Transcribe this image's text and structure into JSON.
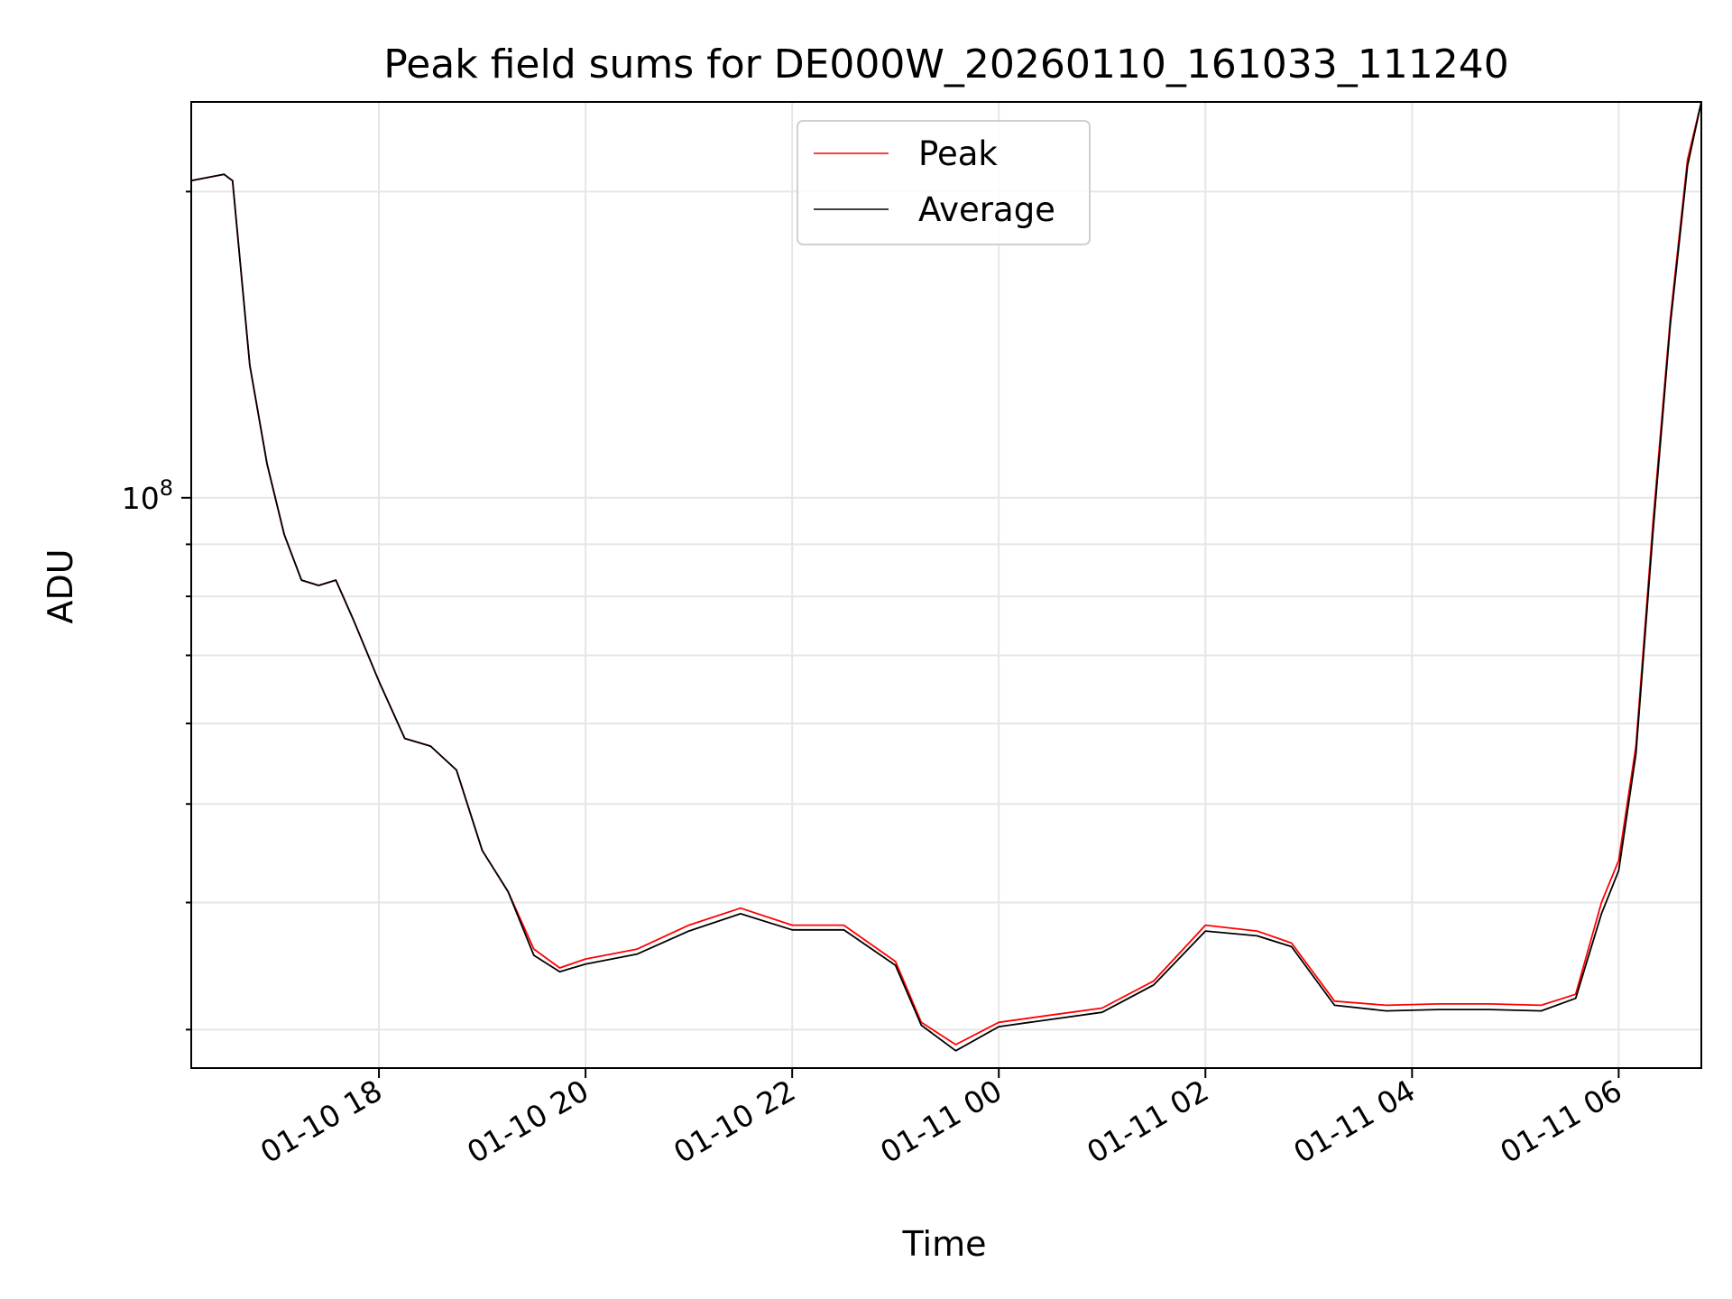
{
  "chart_data": {
    "type": "line",
    "title": "Peak field sums for DE000W_20260110_161033_111240",
    "xlabel": "Time",
    "ylabel": "ADU",
    "x_type": "datetime",
    "y_scale": "log",
    "xlim": [
      "2026-01-10 16:11",
      "2026-01-11 06:48"
    ],
    "ylim": [
      27500000,
      245000000
    ],
    "y_major_ticks": [
      {
        "value": 100000000,
        "base": "10",
        "exp": "8"
      }
    ],
    "x_ticks": [
      {
        "value": "2026-01-10 18:00",
        "label": "01-10 18"
      },
      {
        "value": "2026-01-10 20:00",
        "label": "01-10 20"
      },
      {
        "value": "2026-01-10 22:00",
        "label": "01-10 22"
      },
      {
        "value": "2026-01-11 00:00",
        "label": "01-11 00"
      },
      {
        "value": "2026-01-11 02:00",
        "label": "01-11 02"
      },
      {
        "value": "2026-01-11 04:00",
        "label": "01-11 04"
      },
      {
        "value": "2026-01-11 06:00",
        "label": "01-11 06"
      }
    ],
    "grid": true,
    "legend_position": "upper center",
    "series": [
      {
        "name": "Peak",
        "color": "#ff0000",
        "x": [
          "2026-01-10 16:11",
          "2026-01-10 16:30",
          "2026-01-10 16:35",
          "2026-01-10 16:45",
          "2026-01-10 16:55",
          "2026-01-10 17:05",
          "2026-01-10 17:15",
          "2026-01-10 17:25",
          "2026-01-10 17:35",
          "2026-01-10 17:45",
          "2026-01-10 18:00",
          "2026-01-10 18:15",
          "2026-01-10 18:30",
          "2026-01-10 18:45",
          "2026-01-10 19:00",
          "2026-01-10 19:15",
          "2026-01-10 19:30",
          "2026-01-10 19:45",
          "2026-01-10 20:00",
          "2026-01-10 20:30",
          "2026-01-10 21:00",
          "2026-01-10 21:30",
          "2026-01-10 22:00",
          "2026-01-10 22:30",
          "2026-01-10 23:00",
          "2026-01-10 23:15",
          "2026-01-10 23:35",
          "2026-01-11 00:00",
          "2026-01-11 00:30",
          "2026-01-11 01:00",
          "2026-01-11 01:30",
          "2026-01-11 02:00",
          "2026-01-11 02:30",
          "2026-01-11 02:50",
          "2026-01-11 03:15",
          "2026-01-11 03:45",
          "2026-01-11 04:15",
          "2026-01-11 04:45",
          "2026-01-11 05:15",
          "2026-01-11 05:35",
          "2026-01-11 05:50",
          "2026-01-11 06:00",
          "2026-01-11 06:10",
          "2026-01-11 06:20",
          "2026-01-11 06:30",
          "2026-01-11 06:40",
          "2026-01-11 06:48"
        ],
        "y": [
          205000000,
          208000000,
          205000000,
          135000000,
          108000000,
          92000000,
          83000000,
          82000000,
          83000000,
          76000000,
          66000000,
          58000000,
          57000000,
          54000000,
          45000000,
          41000000,
          36000000,
          34500000,
          35200000,
          36000000,
          38000000,
          39500000,
          38000000,
          38000000,
          35000000,
          30500000,
          29000000,
          30500000,
          31000000,
          31500000,
          33500000,
          38000000,
          37500000,
          36500000,
          32000000,
          31700000,
          31800000,
          31800000,
          31700000,
          32500000,
          40000000,
          44000000,
          57000000,
          95000000,
          150000000,
          215000000,
          245000000
        ]
      },
      {
        "name": "Average",
        "color": "#000000",
        "x": [
          "2026-01-10 16:11",
          "2026-01-10 16:30",
          "2026-01-10 16:35",
          "2026-01-10 16:45",
          "2026-01-10 16:55",
          "2026-01-10 17:05",
          "2026-01-10 17:15",
          "2026-01-10 17:25",
          "2026-01-10 17:35",
          "2026-01-10 17:45",
          "2026-01-10 18:00",
          "2026-01-10 18:15",
          "2026-01-10 18:30",
          "2026-01-10 18:45",
          "2026-01-10 19:00",
          "2026-01-10 19:15",
          "2026-01-10 19:30",
          "2026-01-10 19:45",
          "2026-01-10 20:00",
          "2026-01-10 20:30",
          "2026-01-10 21:00",
          "2026-01-10 21:30",
          "2026-01-10 22:00",
          "2026-01-10 22:30",
          "2026-01-10 23:00",
          "2026-01-10 23:15",
          "2026-01-10 23:35",
          "2026-01-11 00:00",
          "2026-01-11 00:30",
          "2026-01-11 01:00",
          "2026-01-11 01:30",
          "2026-01-11 02:00",
          "2026-01-11 02:30",
          "2026-01-11 02:50",
          "2026-01-11 03:15",
          "2026-01-11 03:45",
          "2026-01-11 04:15",
          "2026-01-11 04:45",
          "2026-01-11 05:15",
          "2026-01-11 05:35",
          "2026-01-11 05:50",
          "2026-01-11 06:00",
          "2026-01-11 06:10",
          "2026-01-11 06:20",
          "2026-01-11 06:30",
          "2026-01-11 06:40",
          "2026-01-11 06:48"
        ],
        "y": [
          205000000,
          208000000,
          205000000,
          135000000,
          108000000,
          92000000,
          83000000,
          82000000,
          83000000,
          76000000,
          66000000,
          58000000,
          57000000,
          54000000,
          45000000,
          41000000,
          35500000,
          34200000,
          34800000,
          35600000,
          37500000,
          39000000,
          37600000,
          37600000,
          34700000,
          30300000,
          28600000,
          30200000,
          30700000,
          31200000,
          33200000,
          37500000,
          37100000,
          36200000,
          31700000,
          31300000,
          31400000,
          31400000,
          31300000,
          32200000,
          39000000,
          43000000,
          56000000,
          93000000,
          148000000,
          212000000,
          245000000
        ]
      }
    ]
  }
}
